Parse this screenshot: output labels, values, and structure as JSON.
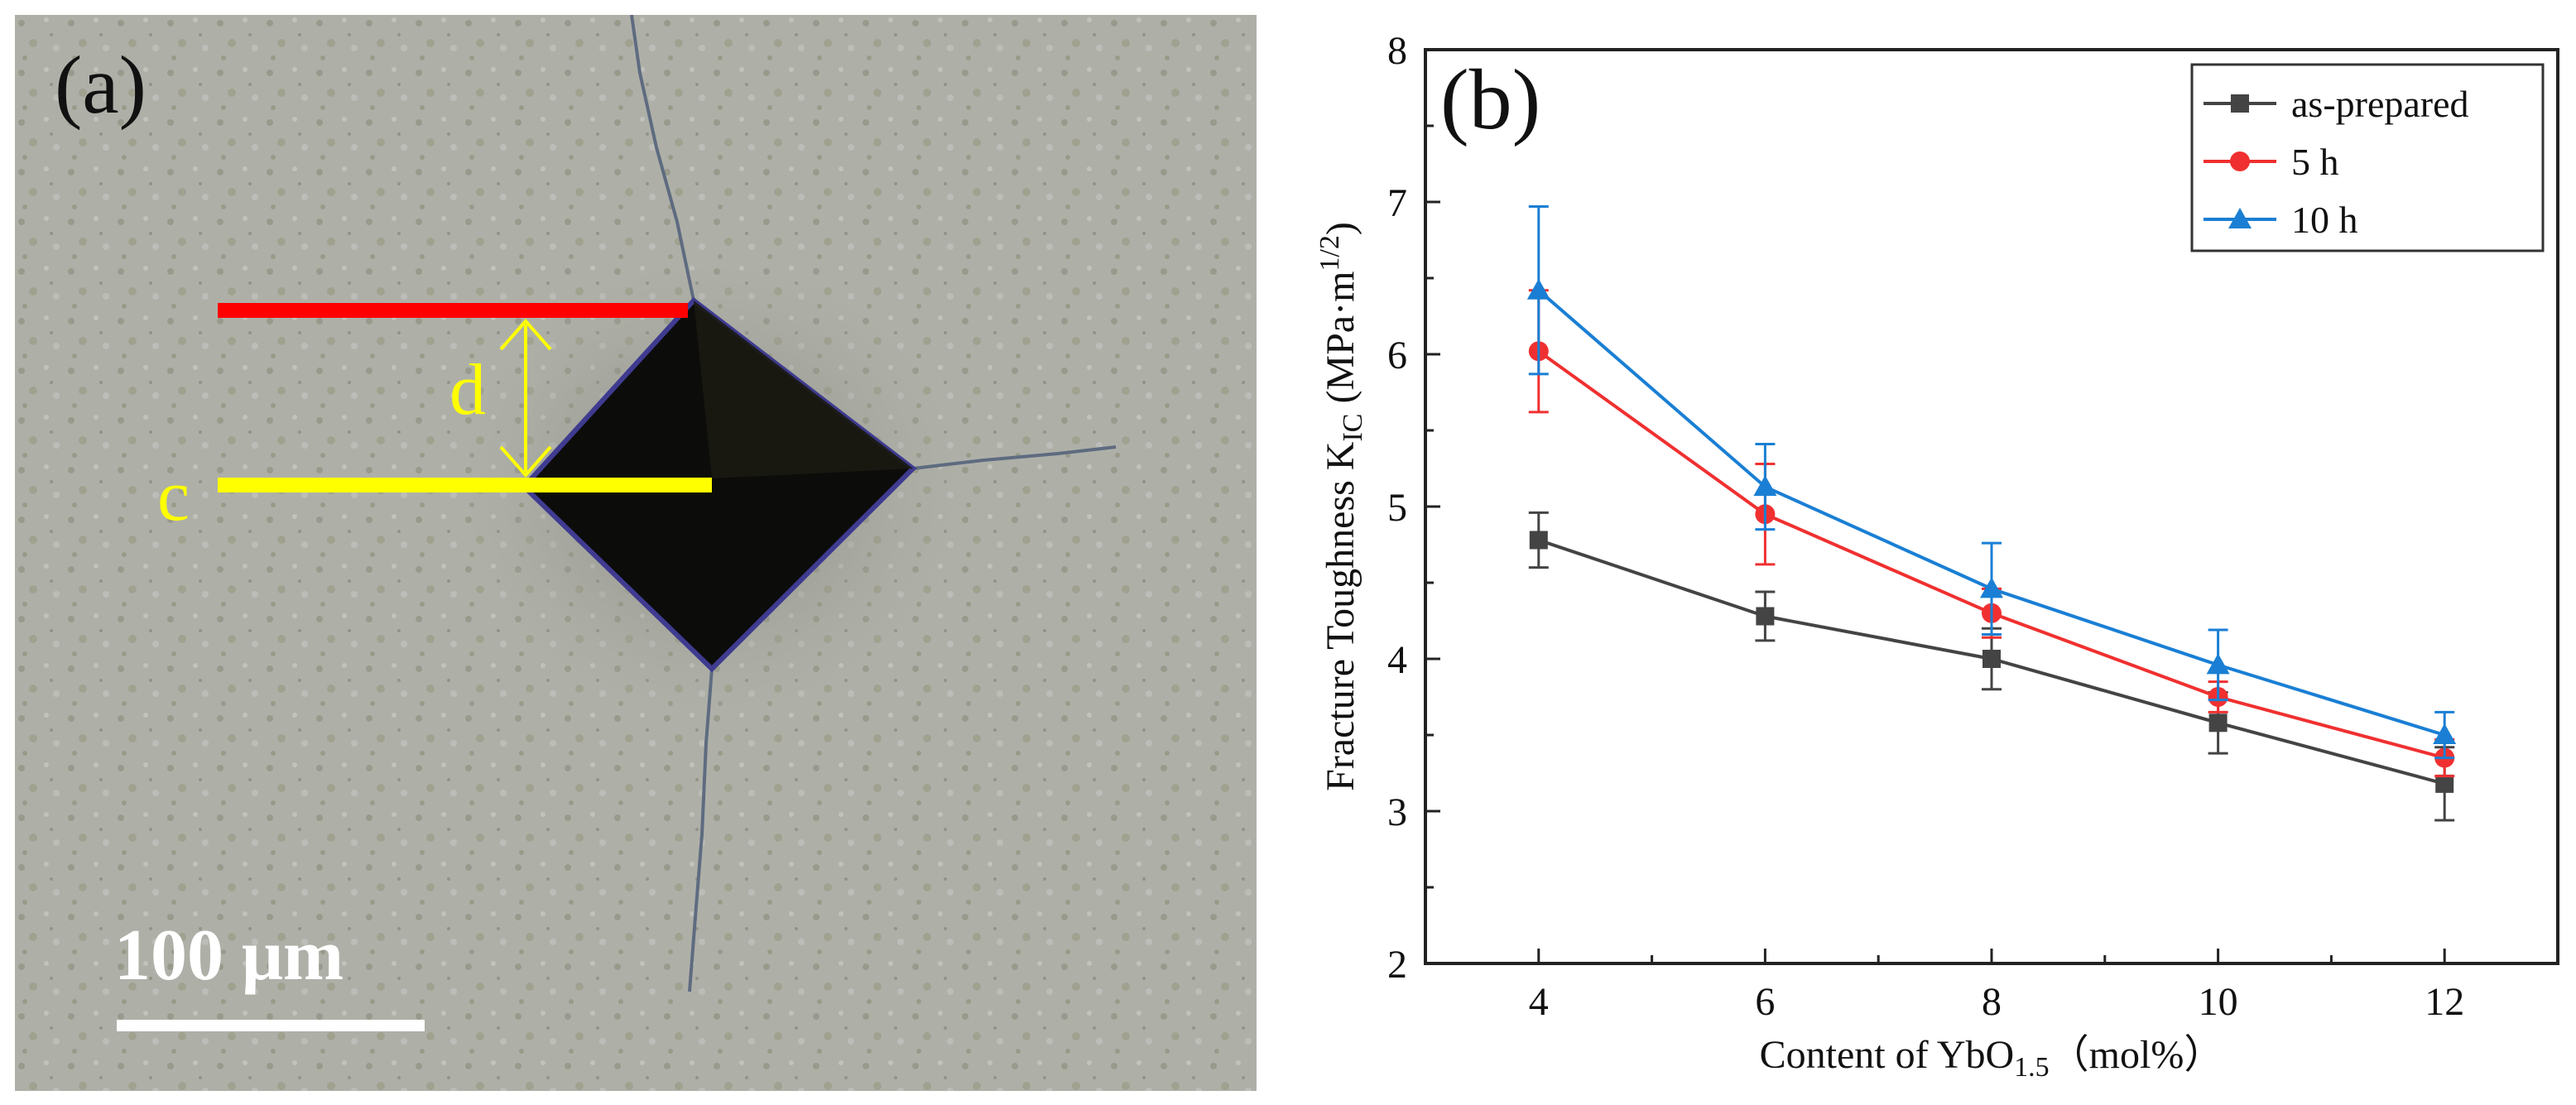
{
  "panel_a": {
    "label": "(a)",
    "d_label": "d",
    "c_label": "c",
    "scale_bar_text": "100 μm",
    "colors": {
      "red_line": "#ff0000",
      "yellow_line": "#ffff00",
      "scale_bar": "#ffffff",
      "background": "#aeb0a8",
      "indent": "#0a0a0a"
    }
  },
  "panel_b": {
    "label": "(b)",
    "ylabel_main": "Fracture Toughness K",
    "ylabel_sub": "IC",
    "ylabel_unit": " (MPa·m",
    "ylabel_sup": "1/2",
    "ylabel_close": ")",
    "xlabel_main": "Content of YbO",
    "xlabel_sub": "1.5",
    "xlabel_unit": "（mol%）",
    "legend_entries": [
      "as-prepared",
      "5 h",
      "10 h"
    ]
  },
  "chart_data": {
    "type": "line",
    "x": [
      4,
      6,
      8,
      10,
      12
    ],
    "xticks": [
      "4",
      "6",
      "8",
      "10",
      "12"
    ],
    "yticks": [
      "2",
      "3",
      "4",
      "5",
      "6",
      "7",
      "8"
    ],
    "xlim": [
      3,
      13
    ],
    "ylim": [
      2,
      8
    ],
    "legend_position": "top-right",
    "grid": false,
    "series": [
      {
        "name": "as-prepared",
        "color": "#444444",
        "marker": "square",
        "values": [
          4.78,
          4.28,
          4.0,
          3.58,
          3.18
        ],
        "errors": [
          0.18,
          0.16,
          0.2,
          0.2,
          0.24
        ]
      },
      {
        "name": "5 h",
        "color": "#f03030",
        "marker": "circle",
        "values": [
          6.02,
          4.95,
          4.3,
          3.75,
          3.35
        ],
        "errors": [
          0.4,
          0.33,
          0.16,
          0.1,
          0.12
        ]
      },
      {
        "name": "10 h",
        "color": "#1a7fd4",
        "marker": "triangle",
        "values": [
          6.42,
          5.13,
          4.46,
          3.96,
          3.5
        ],
        "errors": [
          0.55,
          0.28,
          0.3,
          0.23,
          0.15
        ]
      }
    ]
  }
}
